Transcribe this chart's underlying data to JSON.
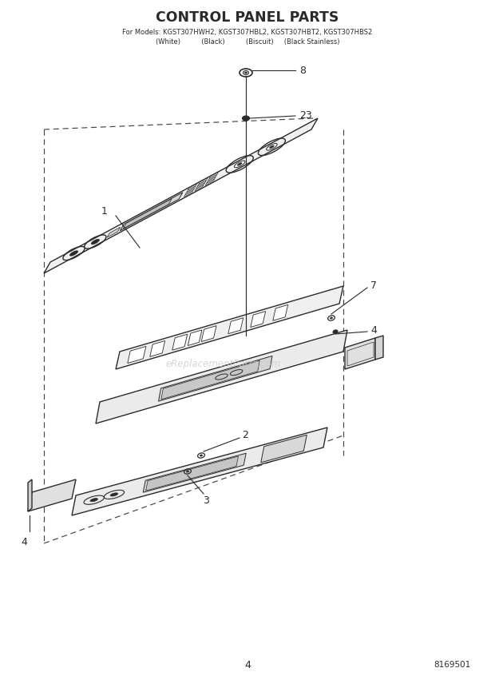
{
  "title": "CONTROL PANEL PARTS",
  "subtitle_line1": "For Models: KGST307HWH2, KGST307HBL2, KGST307HBT2, KGST307HBS2",
  "subtitle_line2": "(White)          (Black)          (Biscuit)     (Black Stainless)",
  "page_number": "4",
  "doc_number": "8169501",
  "background_color": "#ffffff",
  "line_color": "#2a2a2a",
  "dashed_color": "#444444",
  "watermark_text": "eReplacementParts.com",
  "watermark_color": "#cccccc"
}
